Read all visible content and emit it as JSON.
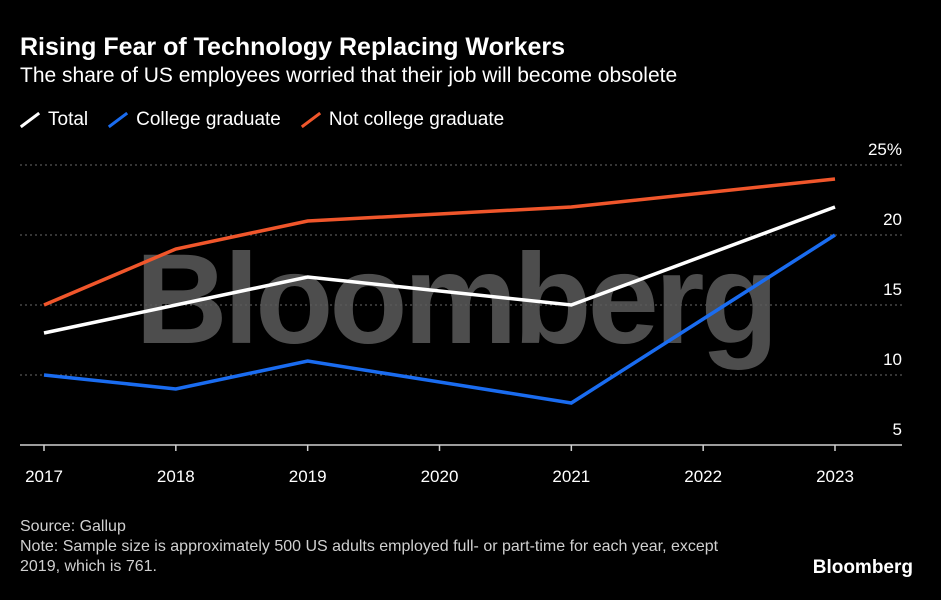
{
  "header": {
    "title": "Rising Fear of Technology Replacing Workers",
    "subtitle": "The share of US employees worried that their job will become obsolete"
  },
  "footer": {
    "source": "Source: Gallup",
    "note": "Note: Sample size is approximately 500 US adults employed full- or part-time for each year, except 2019, which is 761.",
    "brand": "Bloomberg"
  },
  "watermark": "Bloomberg",
  "chart_data": {
    "type": "line",
    "title": "Rising Fear of Technology Replacing Workers",
    "subtitle": "The share of US employees worried that their job will become obsolete",
    "x": [
      2017,
      2018,
      2019,
      2020,
      2021,
      2022,
      2023
    ],
    "x_tick_labels": [
      "2017",
      "2018",
      "2019",
      "2020",
      "2021",
      "2022",
      "2023"
    ],
    "y_ticks": [
      5,
      10,
      15,
      20,
      25
    ],
    "y_tick_labels": [
      "5",
      "10",
      "15",
      "20",
      "25%"
    ],
    "ylim": [
      5,
      25
    ],
    "xlabel": "",
    "ylabel": "",
    "grid": "horizontal dotted",
    "legend_position": "top-left",
    "series": [
      {
        "name": "Total",
        "color": "#ffffff",
        "points": [
          [
            2017,
            13
          ],
          [
            2018,
            15
          ],
          [
            2019,
            17
          ],
          [
            2021,
            15
          ],
          [
            2023,
            22
          ]
        ]
      },
      {
        "name": "College graduate",
        "color": "#1a6cf0",
        "points": [
          [
            2017,
            10
          ],
          [
            2018,
            9
          ],
          [
            2019,
            11
          ],
          [
            2021,
            8
          ],
          [
            2023,
            20
          ]
        ]
      },
      {
        "name": "Not college graduate",
        "color": "#f0562b",
        "points": [
          [
            2017,
            15
          ],
          [
            2018,
            19
          ],
          [
            2019,
            21
          ],
          [
            2021,
            22
          ],
          [
            2023,
            24
          ]
        ]
      }
    ]
  }
}
